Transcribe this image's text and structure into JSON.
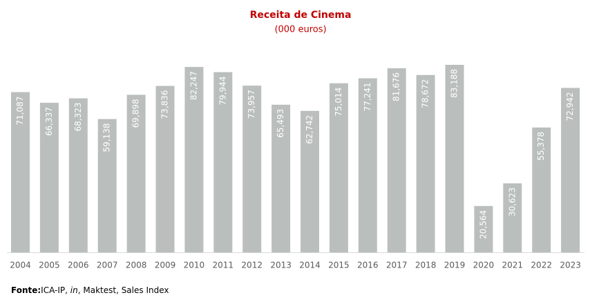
{
  "chart_data": {
    "type": "bar",
    "title": "Receita de Cinema",
    "subtitle": "(000 euros)",
    "categories": [
      "2004",
      "2005",
      "2006",
      "2007",
      "2008",
      "2009",
      "2010",
      "2011",
      "2012",
      "2013",
      "2014",
      "2015",
      "2016",
      "2017",
      "2018",
      "2019",
      "2020",
      "2021",
      "2022",
      "2023"
    ],
    "values": [
      71087,
      66337,
      68323,
      59138,
      69898,
      73836,
      82247,
      79944,
      73957,
      65493,
      62742,
      75014,
      77241,
      81676,
      78672,
      83188,
      20564,
      30623,
      55378,
      72942
    ],
    "value_labels": [
      "71,087",
      "66,337",
      "68,323",
      "59,138",
      "69,898",
      "73,836",
      "82,247",
      "79,944",
      "73,957",
      "65,493",
      "62,742",
      "75,014",
      "77,241",
      "81,676",
      "78,672",
      "83,188",
      "20,564",
      "30,623",
      "55,378",
      "72,942"
    ],
    "color": "#babfbe",
    "source": {
      "label": "Fonte:",
      "parts": [
        "ICA-IP, ",
        "in",
        ", Maktest, Sales Index"
      ]
    }
  }
}
